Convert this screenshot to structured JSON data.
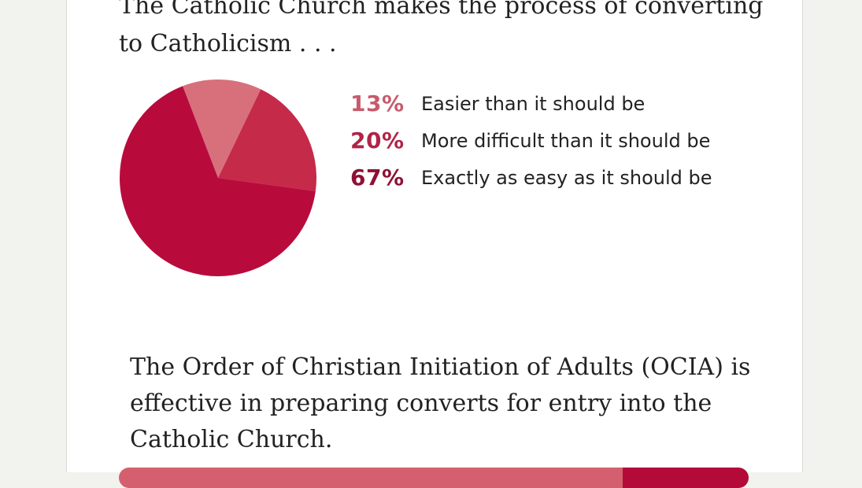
{
  "question": {
    "title": "The Catholic Church makes the process of converting to Catholicism . . ."
  },
  "chart_data": {
    "type": "pie",
    "slices": [
      {
        "label": "Easier than it should be",
        "value": 13,
        "display": "13%",
        "color": "#d8707c",
        "text_color": "#c65b6d"
      },
      {
        "label": "More difficult than it should be",
        "value": 20,
        "display": "20%",
        "color": "#c52a48",
        "text_color": "#b02446"
      },
      {
        "label": "Exactly as easy as it should be",
        "value": 67,
        "display": "67%",
        "color": "#b80b3c",
        "text_color": "#8f1035"
      }
    ]
  },
  "next_question": {
    "statement": "The Order of Christian Initiation of Adults (OCIA) is effective in preparing converts for entry into the Catholic Church."
  },
  "response_bar": {
    "segments": [
      {
        "value": 80,
        "color": "#d4606f"
      },
      {
        "value": 20,
        "color": "#b30a3a"
      }
    ]
  }
}
